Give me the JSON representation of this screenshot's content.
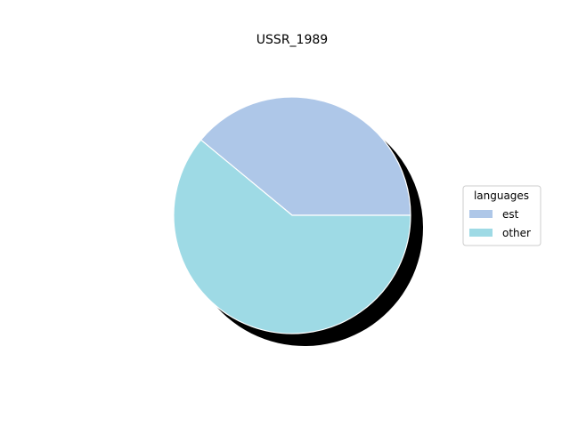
{
  "chart_data": {
    "type": "pie",
    "title": "USSR_1989",
    "legend": {
      "title": "languages",
      "placement": "center-right"
    },
    "slices": [
      {
        "label": "est",
        "value": 39,
        "color": "#aec7e8"
      },
      {
        "label": "other",
        "value": 61,
        "color": "#9edae5"
      }
    ],
    "start_angle": 0,
    "direction": "counterclockwise",
    "shadow": true
  }
}
